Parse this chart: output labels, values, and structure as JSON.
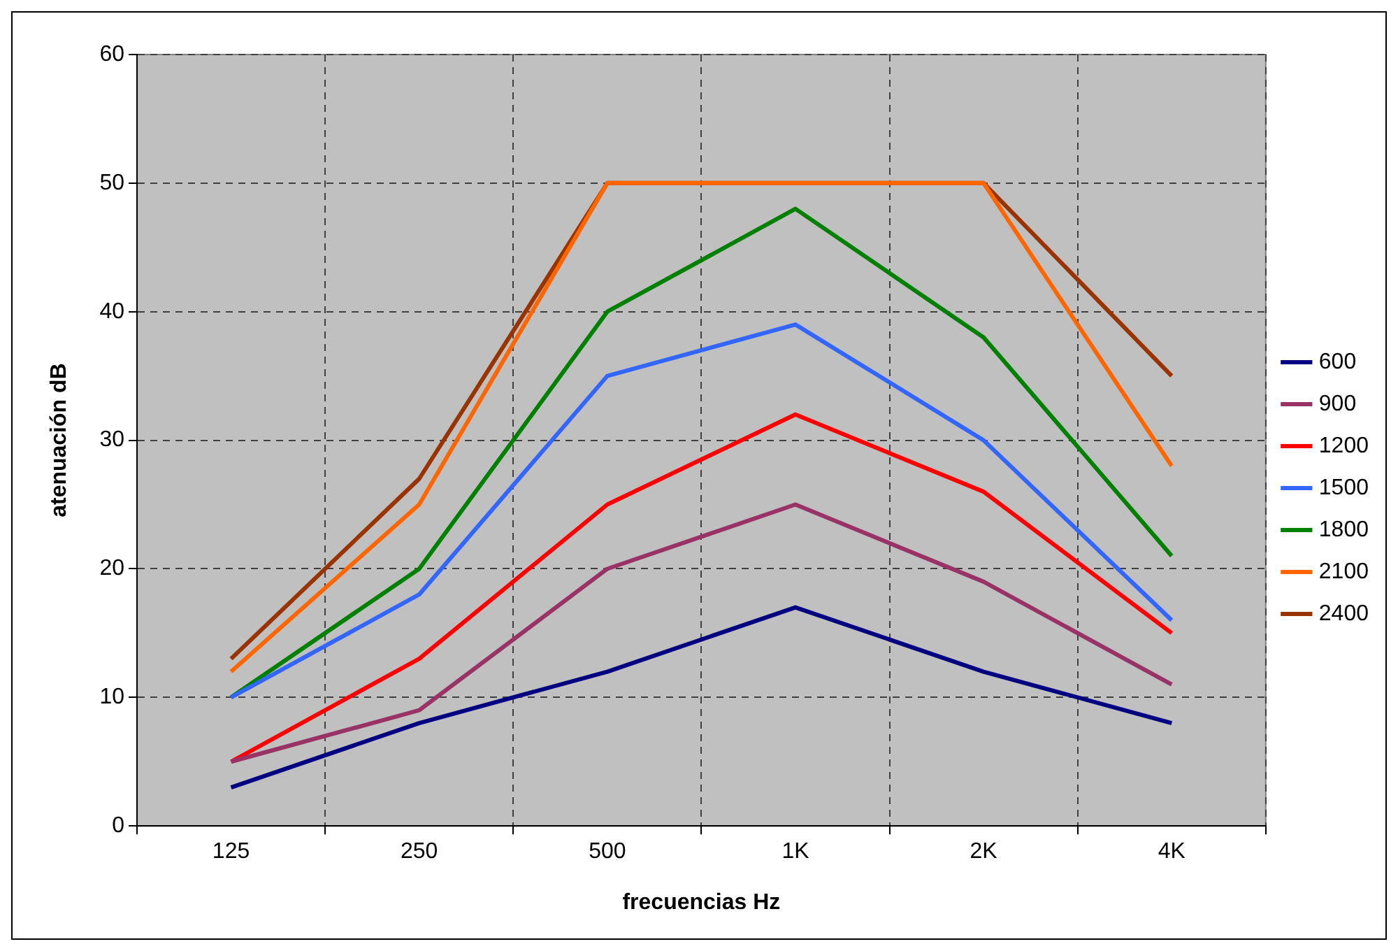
{
  "chart_data": {
    "type": "line",
    "xlabel": "frecuencias Hz",
    "ylabel": "atenuación dB",
    "categories": [
      "125",
      "250",
      "500",
      "1K",
      "2K",
      "4K"
    ],
    "series": [
      {
        "name": "600",
        "color": "#000080",
        "values": [
          3,
          8,
          12,
          17,
          12,
          8
        ]
      },
      {
        "name": "900",
        "color": "#993366",
        "values": [
          5,
          9,
          20,
          25,
          19,
          11
        ]
      },
      {
        "name": "1200",
        "color": "#ff0000",
        "values": [
          5,
          13,
          25,
          32,
          26,
          15
        ]
      },
      {
        "name": "1500",
        "color": "#3366ff",
        "values": [
          10,
          18,
          35,
          39,
          30,
          16
        ]
      },
      {
        "name": "1800",
        "color": "#008000",
        "values": [
          10,
          20,
          40,
          48,
          38,
          21
        ]
      },
      {
        "name": "2100",
        "color": "#ff6600",
        "values": [
          12,
          25,
          50,
          50,
          50,
          28
        ]
      },
      {
        "name": "2400",
        "color": "#993300",
        "values": [
          13,
          27,
          50,
          50,
          50,
          35
        ]
      }
    ],
    "ylim": [
      0,
      60
    ],
    "yticks": [
      0,
      10,
      20,
      30,
      40,
      50,
      60
    ],
    "grid": true,
    "legend": "right",
    "marker": "none",
    "line_style": "solid"
  }
}
